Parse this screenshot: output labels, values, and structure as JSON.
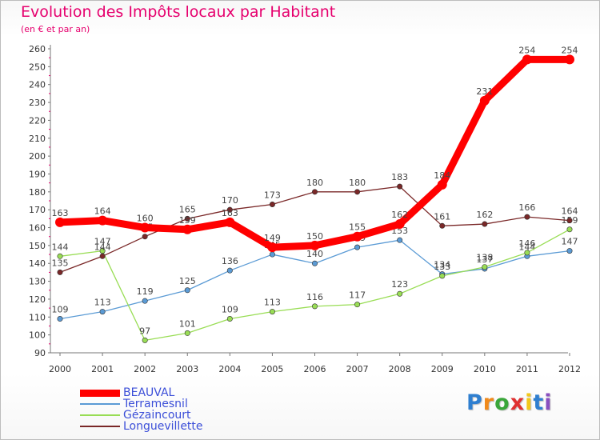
{
  "chart_data": {
    "type": "line",
    "title": "Evolution des Impôts locaux par Habitant",
    "subtitle": "(en € et par an)",
    "x": [
      "2000",
      "2001",
      "2002",
      "2003",
      "2004",
      "2005",
      "2006",
      "2007",
      "2008",
      "2009",
      "2010",
      "2011",
      "2012"
    ],
    "ylim": [
      90,
      260
    ],
    "yticks": [
      90,
      100,
      110,
      120,
      130,
      140,
      150,
      160,
      170,
      180,
      190,
      200,
      210,
      220,
      230,
      240,
      250,
      260
    ],
    "grid": false,
    "legend_position": "bottom-left",
    "series": [
      {
        "name": "BEAUVAL",
        "color": "#ff0000",
        "values": [
          163,
          164,
          160,
          159,
          163,
          149,
          150,
          155,
          162,
          184,
          231,
          254,
          254
        ],
        "labels": [
          "163",
          "164",
          "160",
          "159",
          "163",
          "149",
          "150",
          "155",
          "162",
          "184",
          "231",
          "254",
          "254"
        ]
      },
      {
        "name": "Terramesnil",
        "color": "#5b9bd5",
        "values": [
          109,
          113,
          119,
          125,
          136,
          145,
          140,
          149,
          153,
          134,
          137,
          144,
          147
        ],
        "labels": [
          "109",
          "113",
          "119",
          "125",
          "136",
          "145",
          "140",
          "149",
          "153",
          "134",
          "137",
          "144",
          "147"
        ]
      },
      {
        "name": "Gézaincourt",
        "color": "#99dd55",
        "values": [
          144,
          147,
          97,
          101,
          109,
          113,
          116,
          117,
          123,
          133,
          138,
          146,
          159
        ],
        "labels": [
          "144",
          "147",
          "97",
          "101",
          "109",
          "113",
          "116",
          "117",
          "123",
          "133",
          "138",
          "146",
          "159"
        ]
      },
      {
        "name": "Longuevillette",
        "color": "#7a2828",
        "values": [
          135,
          144,
          155,
          165,
          170,
          173,
          180,
          180,
          183,
          161,
          162,
          166,
          164
        ],
        "labels": [
          "135",
          "144",
          "155",
          "165",
          "170",
          "173",
          "180",
          "180",
          "183",
          "161",
          "162",
          "166",
          "164"
        ]
      }
    ]
  },
  "brand": {
    "letters": [
      "P",
      "r",
      "o",
      "x",
      "i",
      "t",
      "i"
    ],
    "colors": [
      "#2f7fd0",
      "#f08a1c",
      "#3aa63a",
      "#e03030",
      "#f2c81a",
      "#2f7fd0",
      "#8a4fc0"
    ]
  }
}
